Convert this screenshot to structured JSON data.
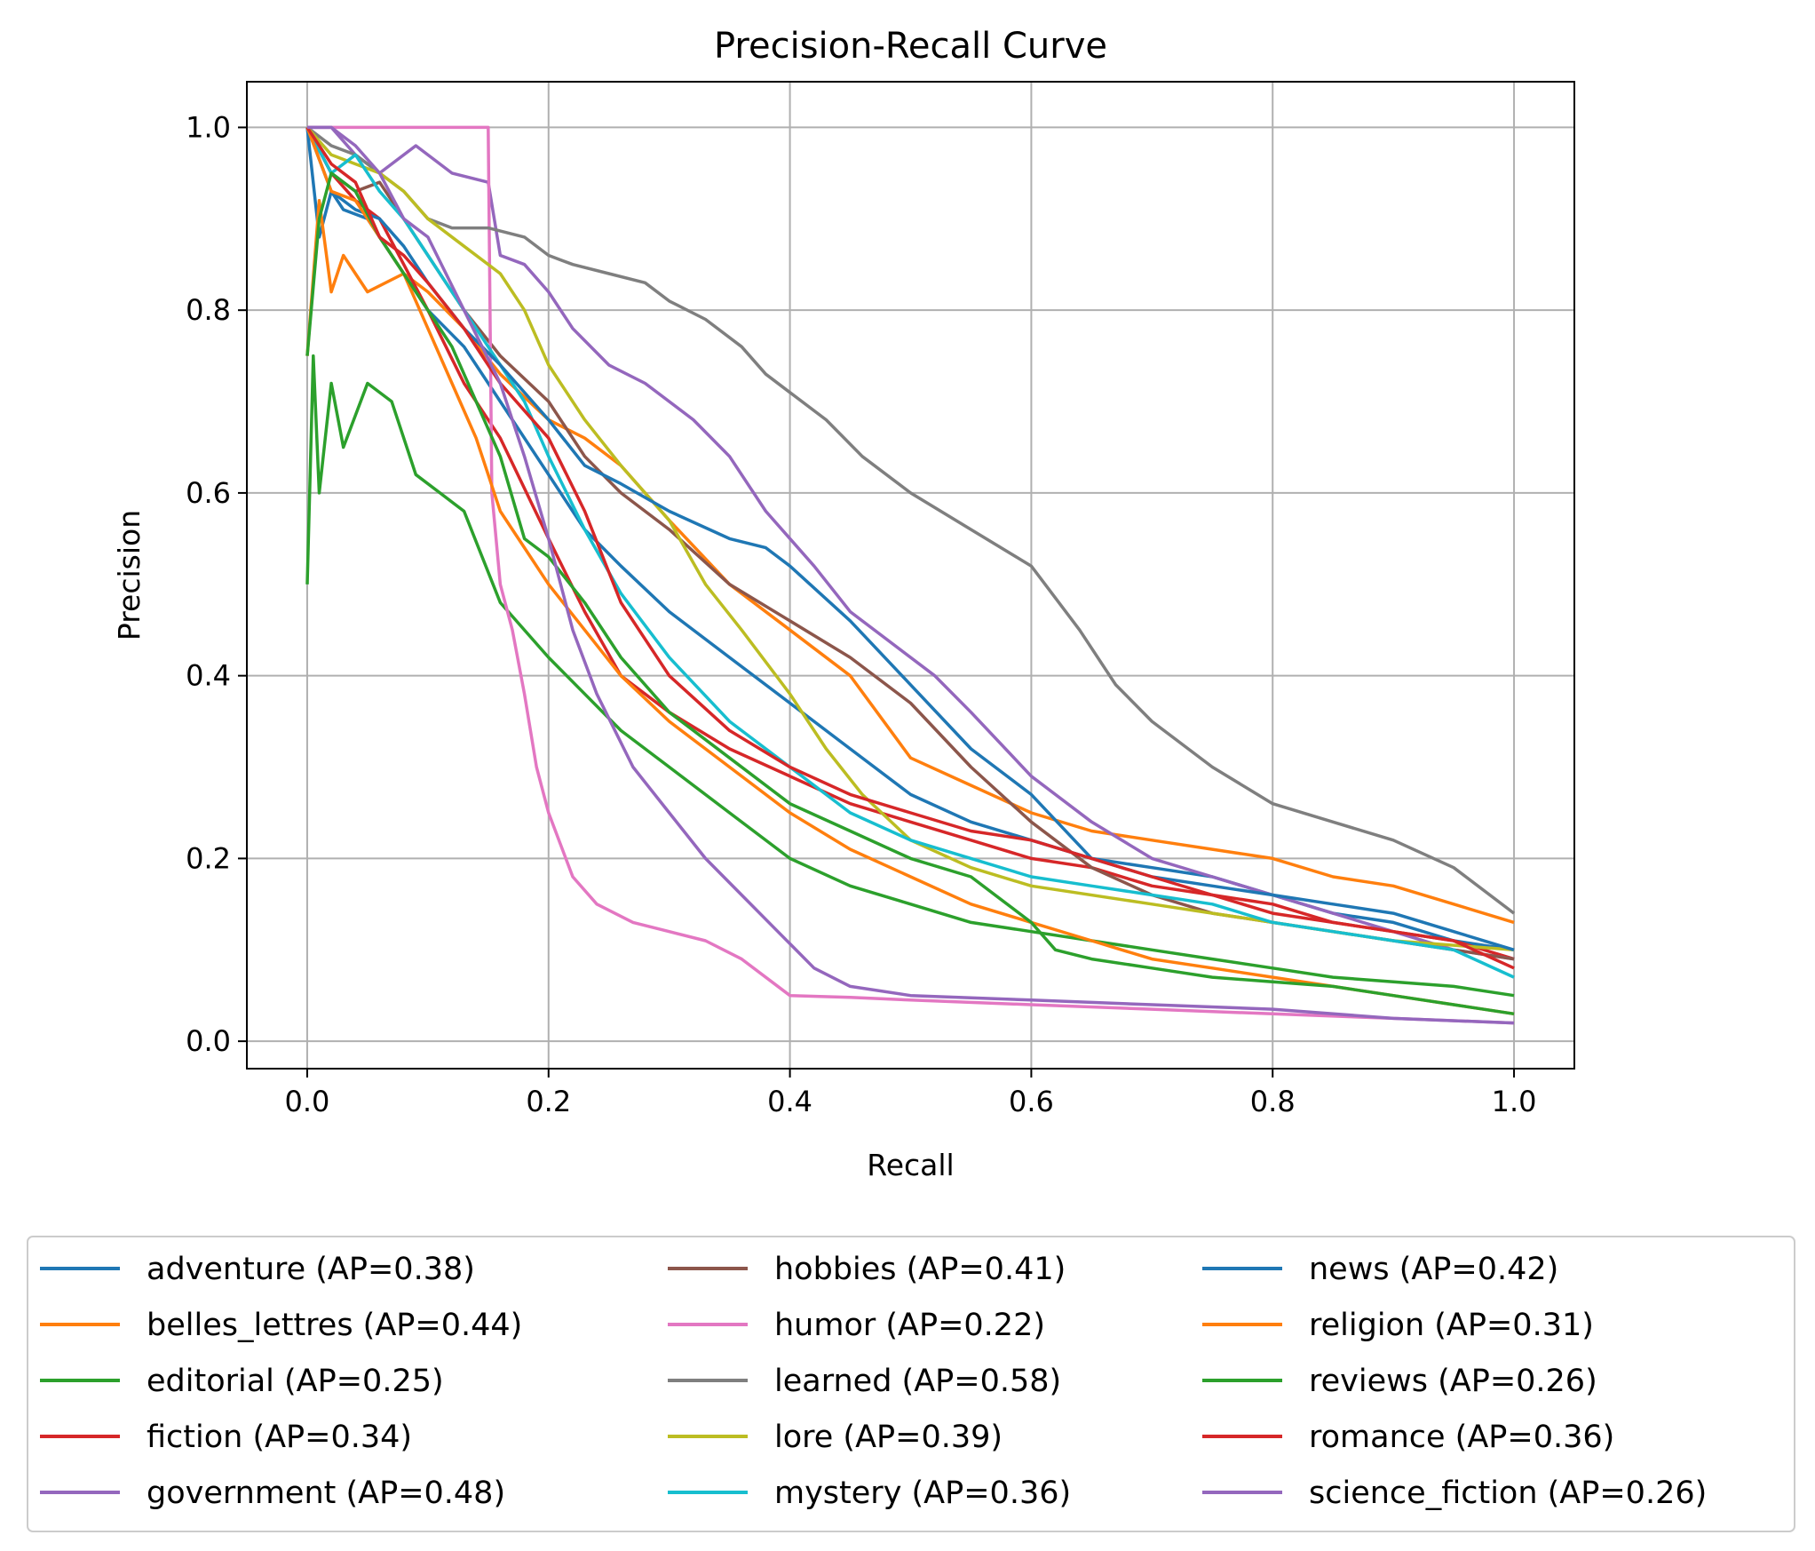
{
  "chart_data": {
    "type": "line",
    "title": "Precision-Recall Curve",
    "xlabel": "Recall",
    "ylabel": "Precision",
    "xlim": [
      -0.05,
      1.05
    ],
    "ylim": [
      -0.03,
      1.05
    ],
    "xticks": [
      "0.0",
      "0.2",
      "0.4",
      "0.6",
      "0.8",
      "1.0"
    ],
    "yticks": [
      "0.0",
      "0.2",
      "0.4",
      "0.6",
      "0.8",
      "1.0"
    ],
    "grid": true,
    "legend_position": "below",
    "series": [
      {
        "name": "adventure (AP=0.38)",
        "color": "#1f77b4",
        "x": [
          0,
          0.01,
          0.02,
          0.03,
          0.05,
          0.08,
          0.1,
          0.13,
          0.16,
          0.2,
          0.23,
          0.26,
          0.3,
          0.35,
          0.4,
          0.45,
          0.5,
          0.55,
          0.6,
          0.65,
          0.7,
          0.75,
          0.8,
          0.85,
          0.9,
          0.95,
          1.0
        ],
        "y": [
          1.0,
          0.88,
          0.93,
          0.91,
          0.9,
          0.84,
          0.8,
          0.76,
          0.7,
          0.62,
          0.56,
          0.52,
          0.47,
          0.42,
          0.37,
          0.32,
          0.27,
          0.24,
          0.22,
          0.2,
          0.19,
          0.18,
          0.16,
          0.14,
          0.13,
          0.11,
          0.1
        ]
      },
      {
        "name": "belles_lettres (AP=0.44)",
        "color": "#ff7f0e",
        "x": [
          0,
          0.01,
          0.02,
          0.03,
          0.05,
          0.08,
          0.1,
          0.13,
          0.16,
          0.2,
          0.23,
          0.26,
          0.3,
          0.35,
          0.4,
          0.45,
          0.5,
          0.55,
          0.6,
          0.65,
          0.7,
          0.75,
          0.8,
          0.85,
          0.9,
          0.95,
          1.0
        ],
        "y": [
          0.75,
          0.92,
          0.82,
          0.86,
          0.82,
          0.84,
          0.82,
          0.78,
          0.73,
          0.68,
          0.66,
          0.63,
          0.57,
          0.5,
          0.45,
          0.4,
          0.31,
          0.28,
          0.25,
          0.23,
          0.22,
          0.21,
          0.2,
          0.18,
          0.17,
          0.15,
          0.13
        ]
      },
      {
        "name": "editorial (AP=0.25)",
        "color": "#2ca02c",
        "x": [
          0,
          0.005,
          0.01,
          0.02,
          0.03,
          0.05,
          0.07,
          0.09,
          0.11,
          0.13,
          0.16,
          0.2,
          0.23,
          0.26,
          0.3,
          0.35,
          0.4,
          0.45,
          0.5,
          0.55,
          0.6,
          0.65,
          0.7,
          0.75,
          0.8,
          0.85,
          0.9,
          0.95,
          1.0
        ],
        "y": [
          0.5,
          0.75,
          0.6,
          0.72,
          0.65,
          0.72,
          0.7,
          0.62,
          0.6,
          0.58,
          0.48,
          0.42,
          0.38,
          0.34,
          0.3,
          0.25,
          0.2,
          0.17,
          0.15,
          0.13,
          0.12,
          0.11,
          0.1,
          0.09,
          0.08,
          0.07,
          0.065,
          0.06,
          0.05
        ]
      },
      {
        "name": "fiction (AP=0.34)",
        "color": "#d62728",
        "x": [
          0,
          0.02,
          0.04,
          0.06,
          0.08,
          0.1,
          0.13,
          0.16,
          0.2,
          0.23,
          0.26,
          0.3,
          0.35,
          0.4,
          0.45,
          0.5,
          0.55,
          0.6,
          0.65,
          0.7,
          0.75,
          0.8,
          0.85,
          0.9,
          0.95,
          1.0
        ],
        "y": [
          1.0,
          0.95,
          0.92,
          0.9,
          0.85,
          0.8,
          0.72,
          0.66,
          0.55,
          0.47,
          0.4,
          0.36,
          0.32,
          0.29,
          0.26,
          0.24,
          0.22,
          0.2,
          0.19,
          0.17,
          0.16,
          0.14,
          0.13,
          0.12,
          0.11,
          0.09
        ]
      },
      {
        "name": "government (AP=0.48)",
        "color": "#9467bd",
        "x": [
          0,
          0.02,
          0.04,
          0.06,
          0.09,
          0.12,
          0.15,
          0.16,
          0.18,
          0.2,
          0.22,
          0.25,
          0.28,
          0.32,
          0.35,
          0.38,
          0.42,
          0.45,
          0.48,
          0.52,
          0.55,
          0.6,
          0.65,
          0.7,
          0.75,
          0.8,
          0.85,
          0.9,
          0.95,
          1.0
        ],
        "y": [
          1.0,
          1.0,
          0.97,
          0.95,
          0.98,
          0.95,
          0.94,
          0.86,
          0.85,
          0.82,
          0.78,
          0.74,
          0.72,
          0.68,
          0.64,
          0.58,
          0.52,
          0.47,
          0.44,
          0.4,
          0.36,
          0.29,
          0.24,
          0.2,
          0.18,
          0.16,
          0.14,
          0.12,
          0.1,
          0.09
        ]
      },
      {
        "name": "hobbies (AP=0.41)",
        "color": "#8c564b",
        "x": [
          0,
          0.02,
          0.04,
          0.06,
          0.08,
          0.1,
          0.13,
          0.16,
          0.2,
          0.23,
          0.26,
          0.3,
          0.35,
          0.4,
          0.45,
          0.5,
          0.55,
          0.6,
          0.65,
          0.7,
          0.75,
          0.8,
          0.85,
          0.9,
          0.95,
          1.0
        ],
        "y": [
          1.0,
          0.95,
          0.93,
          0.94,
          0.9,
          0.86,
          0.8,
          0.75,
          0.7,
          0.64,
          0.6,
          0.56,
          0.5,
          0.46,
          0.42,
          0.37,
          0.3,
          0.24,
          0.19,
          0.16,
          0.14,
          0.13,
          0.12,
          0.11,
          0.1,
          0.09
        ]
      },
      {
        "name": "humor (AP=0.22)",
        "color": "#e377c2",
        "x": [
          0,
          0.05,
          0.1,
          0.15,
          0.153,
          0.16,
          0.17,
          0.18,
          0.19,
          0.2,
          0.22,
          0.24,
          0.27,
          0.3,
          0.33,
          0.36,
          0.4,
          0.45,
          0.5,
          0.6,
          0.7,
          0.8,
          0.9,
          1.0
        ],
        "y": [
          1.0,
          1.0,
          1.0,
          1.0,
          0.6,
          0.5,
          0.45,
          0.38,
          0.3,
          0.25,
          0.18,
          0.15,
          0.13,
          0.12,
          0.11,
          0.09,
          0.05,
          0.048,
          0.045,
          0.04,
          0.035,
          0.03,
          0.025,
          0.02
        ]
      },
      {
        "name": "learned (AP=0.58)",
        "color": "#7f7f7f",
        "x": [
          0,
          0.02,
          0.04,
          0.06,
          0.08,
          0.1,
          0.12,
          0.15,
          0.18,
          0.2,
          0.22,
          0.25,
          0.28,
          0.3,
          0.33,
          0.36,
          0.38,
          0.4,
          0.43,
          0.46,
          0.5,
          0.55,
          0.6,
          0.64,
          0.67,
          0.7,
          0.75,
          0.8,
          0.85,
          0.9,
          0.95,
          1.0
        ],
        "y": [
          1.0,
          0.98,
          0.97,
          0.95,
          0.93,
          0.9,
          0.89,
          0.89,
          0.88,
          0.86,
          0.85,
          0.84,
          0.83,
          0.81,
          0.79,
          0.76,
          0.73,
          0.71,
          0.68,
          0.64,
          0.6,
          0.56,
          0.52,
          0.45,
          0.39,
          0.35,
          0.3,
          0.26,
          0.24,
          0.22,
          0.19,
          0.14
        ]
      },
      {
        "name": "lore (AP=0.39)",
        "color": "#bcbd22",
        "x": [
          0,
          0.02,
          0.04,
          0.06,
          0.08,
          0.1,
          0.13,
          0.16,
          0.18,
          0.2,
          0.23,
          0.26,
          0.3,
          0.33,
          0.36,
          0.4,
          0.43,
          0.46,
          0.5,
          0.55,
          0.6,
          0.7,
          0.8,
          0.9,
          1.0
        ],
        "y": [
          1.0,
          0.97,
          0.96,
          0.95,
          0.93,
          0.9,
          0.87,
          0.84,
          0.8,
          0.74,
          0.68,
          0.63,
          0.57,
          0.5,
          0.45,
          0.38,
          0.32,
          0.27,
          0.22,
          0.19,
          0.17,
          0.15,
          0.13,
          0.11,
          0.1
        ]
      },
      {
        "name": "mystery (AP=0.36)",
        "color": "#17becf",
        "x": [
          0,
          0.02,
          0.04,
          0.06,
          0.08,
          0.1,
          0.13,
          0.16,
          0.18,
          0.2,
          0.23,
          0.26,
          0.3,
          0.35,
          0.4,
          0.45,
          0.5,
          0.55,
          0.6,
          0.65,
          0.7,
          0.75,
          0.8,
          0.85,
          0.9,
          0.95,
          1.0
        ],
        "y": [
          1.0,
          0.95,
          0.97,
          0.93,
          0.9,
          0.86,
          0.8,
          0.74,
          0.7,
          0.64,
          0.56,
          0.49,
          0.42,
          0.35,
          0.3,
          0.25,
          0.22,
          0.2,
          0.18,
          0.17,
          0.16,
          0.15,
          0.13,
          0.12,
          0.11,
          0.1,
          0.07
        ]
      },
      {
        "name": "news (AP=0.42)",
        "color": "#1f77b4",
        "x": [
          0,
          0.02,
          0.04,
          0.06,
          0.08,
          0.1,
          0.13,
          0.16,
          0.2,
          0.23,
          0.26,
          0.3,
          0.35,
          0.38,
          0.4,
          0.45,
          0.5,
          0.55,
          0.6,
          0.65,
          0.7,
          0.75,
          0.8,
          0.85,
          0.9,
          0.95,
          1.0
        ],
        "y": [
          1.0,
          0.93,
          0.91,
          0.9,
          0.87,
          0.83,
          0.78,
          0.74,
          0.68,
          0.63,
          0.61,
          0.58,
          0.55,
          0.54,
          0.52,
          0.46,
          0.39,
          0.32,
          0.27,
          0.2,
          0.18,
          0.17,
          0.16,
          0.15,
          0.14,
          0.12,
          0.1
        ]
      },
      {
        "name": "religion (AP=0.31)",
        "color": "#ff7f0e",
        "x": [
          0,
          0.02,
          0.04,
          0.06,
          0.08,
          0.1,
          0.12,
          0.14,
          0.16,
          0.18,
          0.2,
          0.23,
          0.26,
          0.3,
          0.35,
          0.4,
          0.45,
          0.5,
          0.55,
          0.6,
          0.65,
          0.7,
          0.75,
          0.8,
          0.85,
          0.9,
          0.95,
          1.0
        ],
        "y": [
          1.0,
          0.93,
          0.92,
          0.88,
          0.84,
          0.78,
          0.72,
          0.66,
          0.58,
          0.54,
          0.5,
          0.45,
          0.4,
          0.35,
          0.3,
          0.25,
          0.21,
          0.18,
          0.15,
          0.13,
          0.11,
          0.09,
          0.08,
          0.07,
          0.06,
          0.05,
          0.04,
          0.03
        ]
      },
      {
        "name": "reviews (AP=0.26)",
        "color": "#2ca02c",
        "x": [
          0,
          0.01,
          0.02,
          0.04,
          0.06,
          0.08,
          0.1,
          0.12,
          0.14,
          0.16,
          0.18,
          0.2,
          0.23,
          0.26,
          0.3,
          0.35,
          0.4,
          0.45,
          0.5,
          0.55,
          0.6,
          0.62,
          0.65,
          0.7,
          0.75,
          0.8,
          0.85,
          0.9,
          0.95,
          1.0
        ],
        "y": [
          0.75,
          0.9,
          0.95,
          0.93,
          0.88,
          0.84,
          0.8,
          0.76,
          0.7,
          0.64,
          0.55,
          0.53,
          0.48,
          0.42,
          0.36,
          0.31,
          0.26,
          0.23,
          0.2,
          0.18,
          0.13,
          0.1,
          0.09,
          0.08,
          0.07,
          0.065,
          0.06,
          0.05,
          0.04,
          0.03
        ]
      },
      {
        "name": "romance (AP=0.36)",
        "color": "#d62728",
        "x": [
          0,
          0.02,
          0.04,
          0.06,
          0.08,
          0.1,
          0.13,
          0.16,
          0.2,
          0.23,
          0.26,
          0.3,
          0.35,
          0.4,
          0.45,
          0.5,
          0.55,
          0.6,
          0.65,
          0.7,
          0.75,
          0.8,
          0.85,
          0.9,
          0.95,
          1.0
        ],
        "y": [
          1.0,
          0.96,
          0.94,
          0.88,
          0.86,
          0.83,
          0.78,
          0.72,
          0.66,
          0.58,
          0.48,
          0.4,
          0.34,
          0.3,
          0.27,
          0.25,
          0.23,
          0.22,
          0.2,
          0.18,
          0.16,
          0.15,
          0.13,
          0.12,
          0.11,
          0.08
        ]
      },
      {
        "name": "science_fiction (AP=0.26)",
        "color": "#9467bd",
        "x": [
          0,
          0.02,
          0.04,
          0.06,
          0.08,
          0.1,
          0.13,
          0.16,
          0.18,
          0.2,
          0.22,
          0.24,
          0.27,
          0.3,
          0.33,
          0.36,
          0.39,
          0.42,
          0.45,
          0.5,
          0.6,
          0.7,
          0.8,
          0.9,
          1.0
        ],
        "y": [
          1.0,
          1.0,
          0.98,
          0.95,
          0.9,
          0.88,
          0.8,
          0.72,
          0.64,
          0.55,
          0.45,
          0.38,
          0.3,
          0.25,
          0.2,
          0.16,
          0.12,
          0.08,
          0.06,
          0.05,
          0.045,
          0.04,
          0.035,
          0.025,
          0.02
        ]
      }
    ]
  }
}
